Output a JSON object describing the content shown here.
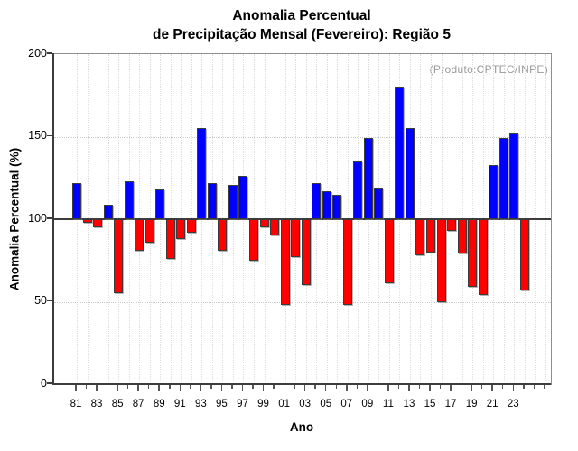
{
  "title": {
    "line1": "Anomalia Percentual",
    "line2": "de Precipitação Mensal (Fevereiro): Região 5"
  },
  "annotation": "(Produto:CPTEC/INPE)",
  "axes": {
    "y_label": "Anomalia Percentual (%)",
    "x_label": "Ano",
    "y_ticks": [
      0,
      50,
      100,
      150,
      200
    ],
    "y_range": [
      0,
      200
    ],
    "h_gridlines": [
      50,
      150
    ],
    "baseline": 100,
    "x_tick_labels": [
      "81",
      "83",
      "85",
      "87",
      "89",
      "91",
      "93",
      "95",
      "97",
      "99",
      "01",
      "03",
      "05",
      "07",
      "09",
      "11",
      "13",
      "15",
      "17",
      "19",
      "21",
      "23"
    ]
  },
  "colors": {
    "above_baseline": "#0000ff",
    "below_baseline": "#ff0000",
    "bar_border": "#3b3b3b",
    "annotation_text": "#9a9a9a",
    "axis": "#3c3c3c",
    "grid": "#d9d9d9"
  },
  "chart_data": {
    "type": "bar",
    "title": "Anomalia Percentual de Precipitação Mensal (Fevereiro): Região 5",
    "xlabel": "Ano",
    "ylabel": "Anomalia Percentual (%)",
    "ylim": [
      0,
      200
    ],
    "baseline": 100,
    "color_rule": "blue if value >= 100 else red",
    "legend": "none",
    "grid": "dotted vertical line per year; dotted horizontal at 50 and 150; solid dark line at 100",
    "x": [
      1981,
      1982,
      1983,
      1984,
      1985,
      1986,
      1987,
      1988,
      1989,
      1990,
      1991,
      1992,
      1993,
      1994,
      1995,
      1996,
      1997,
      1998,
      1999,
      2000,
      2001,
      2002,
      2003,
      2004,
      2005,
      2006,
      2007,
      2008,
      2009,
      2010,
      2011,
      2012,
      2013,
      2014,
      2015,
      2016,
      2017,
      2018,
      2019,
      2020,
      2021,
      2022,
      2023,
      2024
    ],
    "values": [
      122,
      98,
      95,
      109,
      55,
      123,
      81,
      86,
      118,
      76,
      88,
      92,
      155,
      122,
      81,
      121,
      126,
      75,
      95,
      90,
      48,
      77,
      60,
      122,
      117,
      115,
      48,
      135,
      149,
      119,
      61,
      180,
      155,
      78,
      80,
      50,
      93,
      79,
      59,
      54,
      133,
      149,
      152,
      57
    ]
  }
}
